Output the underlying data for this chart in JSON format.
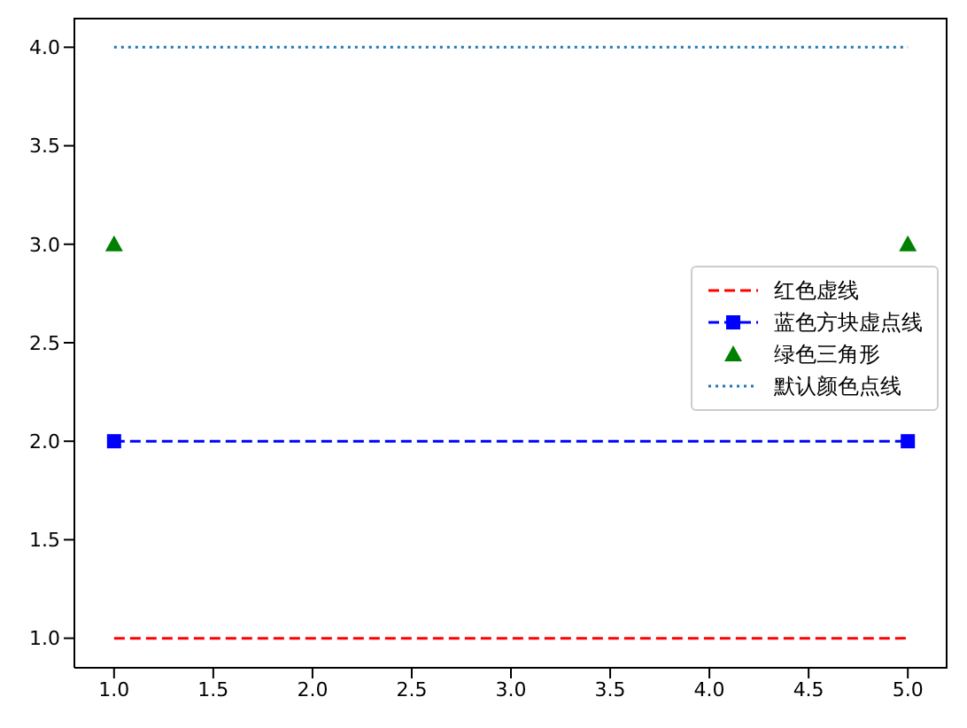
{
  "chart_data": {
    "type": "line",
    "x": [
      1,
      5
    ],
    "xlim": [
      0.8,
      5.2
    ],
    "xticks": [
      {
        "value": 1,
        "label": "1.0"
      },
      {
        "value": 1.5,
        "label": "1.5"
      },
      {
        "value": 2,
        "label": "2.0"
      },
      {
        "value": 2.5,
        "label": "2.5"
      },
      {
        "value": 3,
        "label": "3.0"
      },
      {
        "value": 3.5,
        "label": "3.5"
      },
      {
        "value": 4,
        "label": "4.0"
      },
      {
        "value": 4.5,
        "label": "4.5"
      },
      {
        "value": 5,
        "label": "5.0"
      }
    ],
    "ylim": [
      0.85,
      4.15
    ],
    "yticks": [
      {
        "value": 1,
        "label": "1.0"
      },
      {
        "value": 1.5,
        "label": "1.5"
      },
      {
        "value": 2,
        "label": "2.0"
      },
      {
        "value": 2.5,
        "label": "2.5"
      },
      {
        "value": 3,
        "label": "3.0"
      },
      {
        "value": 3.5,
        "label": "3.5"
      },
      {
        "value": 4,
        "label": "4.0"
      }
    ],
    "legend": "center right",
    "series": [
      {
        "name": "红色虚线",
        "color": "#ff0000",
        "values": [
          1,
          1
        ],
        "line_style": "dashed",
        "marker": "none"
      },
      {
        "name": "蓝色方块虚点线",
        "color": "#0000ff",
        "values": [
          2,
          2
        ],
        "line_style": "dashed",
        "marker": "square"
      },
      {
        "name": "绿色三角形",
        "type": "scatter",
        "color": "#008000",
        "values": [
          3,
          3
        ],
        "marker": "triangle"
      },
      {
        "name": "默认颜色点线",
        "color": "#1f77b4",
        "values": [
          4,
          4
        ],
        "line_style": "dotted",
        "marker": "none"
      }
    ]
  }
}
